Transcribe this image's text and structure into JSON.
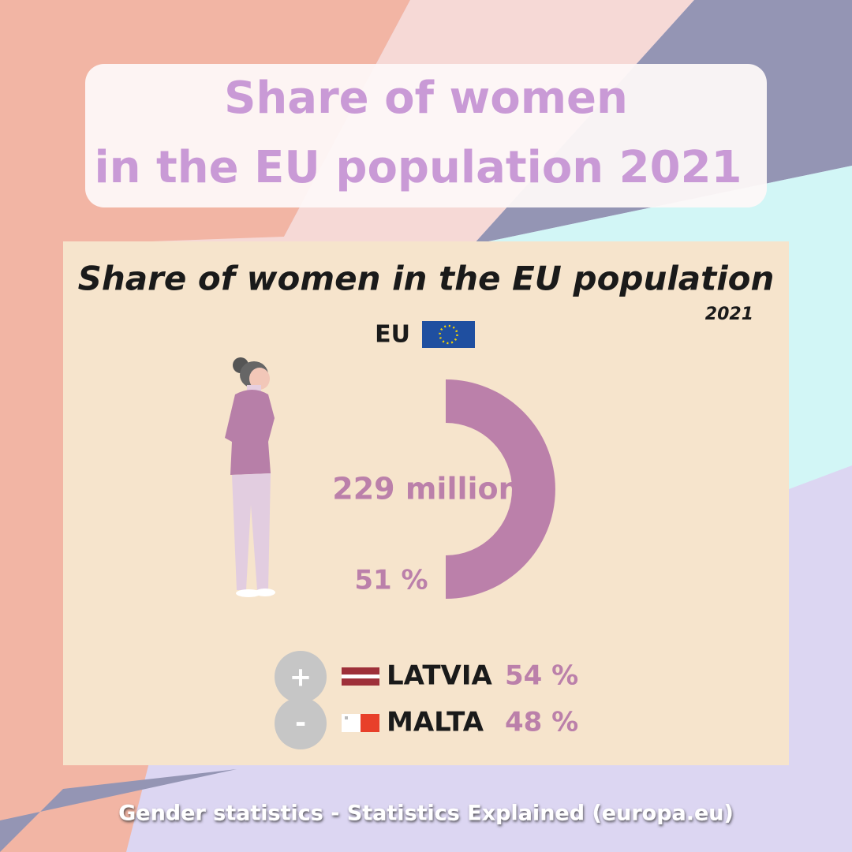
{
  "header": {
    "title_line1": "Share of women",
    "title_line2": "in the EU population 2021"
  },
  "card": {
    "title": "Share of women in the EU population",
    "year": "2021",
    "region": "EU",
    "population": "229 million",
    "share_label": "51 %",
    "extremes": [
      {
        "sign": "+",
        "country": "LATVIA",
        "share_label": "54 %"
      },
      {
        "sign": "-",
        "country": "MALTA",
        "share_label": "48 %"
      }
    ]
  },
  "footer": "Gender statistics - Statistics Explained (europa.eu)"
}
